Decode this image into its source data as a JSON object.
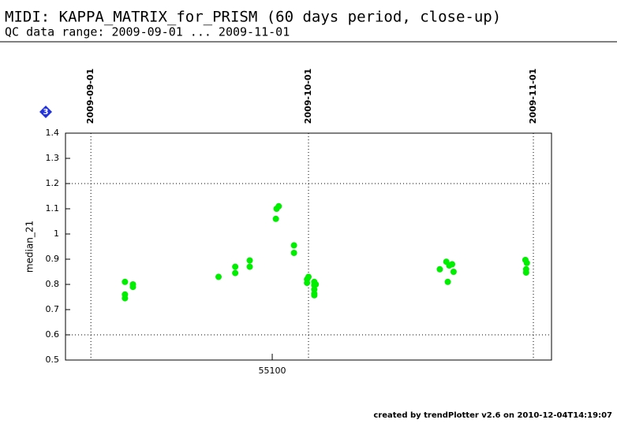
{
  "header": {
    "title": "MIDI: KAPPA_MATRIX_for_PRISM (60 days period, close-up)",
    "subtitle": "QC data range: 2009-09-01 ... 2009-11-01"
  },
  "badge": "3",
  "footer": "created by trendPlotter v2.6 on 2010-12-04T14:19:07",
  "chart_data": {
    "type": "scatter",
    "y_label": "median_21",
    "color": "#00ee00",
    "x": [
      55079.7,
      55079.7,
      55079.7,
      55080.8,
      55080.8,
      55092.6,
      55094.9,
      55094.9,
      55096.9,
      55096.9,
      55100.5,
      55100.6,
      55100.9,
      55103.0,
      55103.0,
      55104.8,
      55104.8,
      55105.0,
      55105.8,
      55105.8,
      55105.8,
      55105.8,
      55105.8,
      55106.0,
      55123.1,
      55124.0,
      55124.2,
      55124.4,
      55124.8,
      55125.0,
      55134.9,
      55135.1,
      55135.0,
      55135.0
    ],
    "values": [
      0.81,
      0.76,
      0.745,
      0.8,
      0.79,
      0.83,
      0.87,
      0.845,
      0.895,
      0.87,
      1.06,
      1.1,
      1.11,
      0.955,
      0.925,
      0.82,
      0.806,
      0.83,
      0.81,
      0.797,
      0.78,
      0.763,
      0.757,
      0.8,
      0.86,
      0.89,
      0.81,
      0.875,
      0.88,
      0.85,
      0.897,
      0.885,
      0.86,
      0.847
    ],
    "xlim": [
      55071.5,
      55138.5
    ],
    "ylim": [
      0.5,
      1.4
    ],
    "xticks": [
      55100
    ],
    "yticks": [
      0.5,
      0.6,
      0.7,
      0.8,
      0.9,
      1,
      1.1,
      1.2,
      1.3,
      1.4
    ],
    "date_ticks": [
      {
        "value": 55075,
        "label": "2009-09-01"
      },
      {
        "value": 55105,
        "label": "2009-10-01"
      },
      {
        "value": 55136,
        "label": "2009-11-01"
      }
    ],
    "hlines": [
      0.6,
      1.2
    ]
  }
}
